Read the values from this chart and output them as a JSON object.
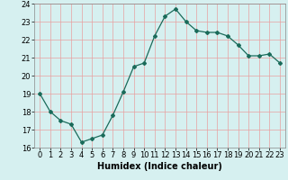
{
  "x": [
    0,
    1,
    2,
    3,
    4,
    5,
    6,
    7,
    8,
    9,
    10,
    11,
    12,
    13,
    14,
    15,
    16,
    17,
    18,
    19,
    20,
    21,
    22,
    23
  ],
  "y": [
    19.0,
    18.0,
    17.5,
    17.3,
    16.3,
    16.5,
    16.7,
    17.8,
    19.1,
    20.5,
    20.7,
    22.2,
    23.3,
    23.7,
    23.0,
    22.5,
    22.4,
    22.4,
    22.2,
    21.7,
    21.1,
    21.1,
    21.2,
    20.7
  ],
  "line_color": "#1a6b5a",
  "marker": "D",
  "marker_size": 2.0,
  "bg_color": "#d6f0f0",
  "grid_color": "#e8a0a0",
  "xlabel": "Humidex (Indice chaleur)",
  "ylim": [
    16,
    24
  ],
  "yticks": [
    16,
    17,
    18,
    19,
    20,
    21,
    22,
    23,
    24
  ],
  "xticks": [
    0,
    1,
    2,
    3,
    4,
    5,
    6,
    7,
    8,
    9,
    10,
    11,
    12,
    13,
    14,
    15,
    16,
    17,
    18,
    19,
    20,
    21,
    22,
    23
  ],
  "xlabel_fontsize": 7,
  "tick_fontsize": 6
}
